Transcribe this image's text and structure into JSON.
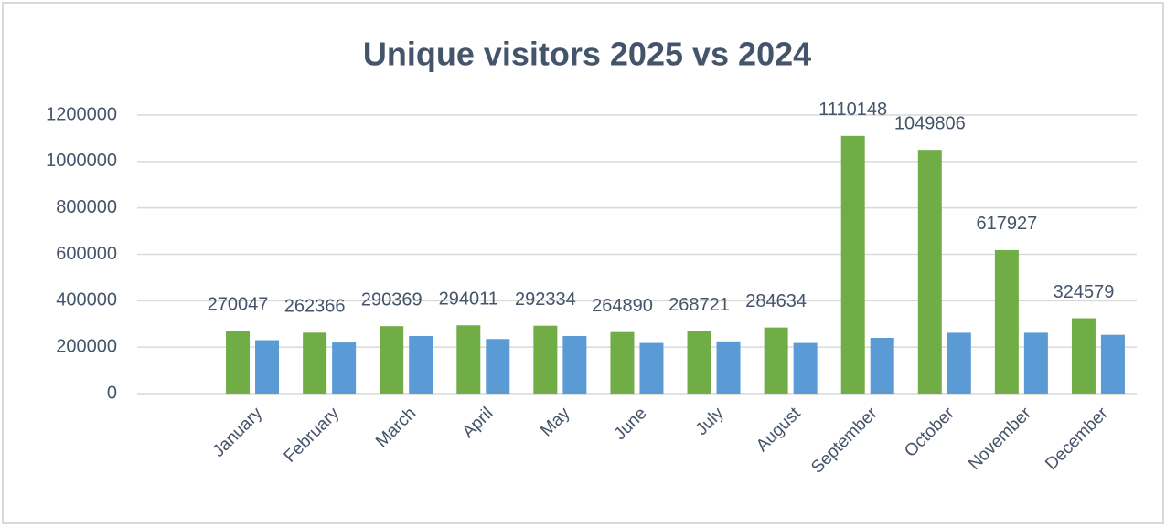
{
  "chart_data": {
    "type": "bar",
    "title": "Unique visitors 2025 vs 2024",
    "categories": [
      "January",
      "February",
      "March",
      "April",
      "May",
      "June",
      "July",
      "August",
      "September",
      "October",
      "November",
      "December"
    ],
    "series": [
      {
        "color": "#70ad47",
        "values": [
          270047,
          262366,
          290369,
          294011,
          292334,
          264890,
          268721,
          284634,
          1110148,
          1049806,
          617927,
          324579
        ],
        "data_labels": true
      },
      {
        "color": "#5b9bd5",
        "values": [
          230000,
          220000,
          248000,
          235000,
          248000,
          218000,
          225000,
          218000,
          240000,
          262000,
          262000,
          253000
        ],
        "data_labels": false
      }
    ],
    "ylim": [
      0,
      1200000
    ],
    "yticks": [
      0,
      200000,
      400000,
      600000,
      800000,
      1000000,
      1200000
    ],
    "grid": true
  }
}
